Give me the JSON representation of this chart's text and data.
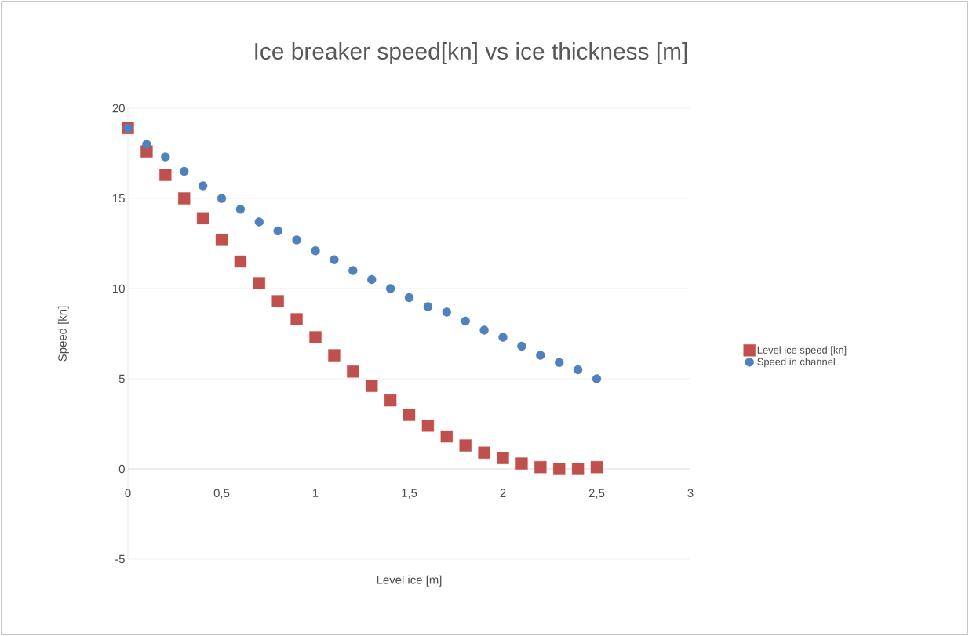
{
  "chart_data": {
    "type": "scatter",
    "title": "Ice breaker speed[kn] vs ice thickness [m]",
    "xlabel": "Level  ice [m]",
    "ylabel": "Speed  [kn]",
    "x": [
      0,
      0.1,
      0.2,
      0.3,
      0.4,
      0.5,
      0.6,
      0.7,
      0.8,
      0.9,
      1.0,
      1.1,
      1.2,
      1.3,
      1.4,
      1.5,
      1.6,
      1.7,
      1.8,
      1.9,
      2.0,
      2.1,
      2.2,
      2.3,
      2.4,
      2.5
    ],
    "series": [
      {
        "name": "Level ice speed [kn]",
        "color": "#c0504d",
        "marker": "square",
        "values": [
          18.9,
          17.6,
          16.3,
          15.0,
          13.9,
          12.7,
          11.5,
          10.3,
          9.3,
          8.3,
          7.3,
          6.3,
          5.4,
          4.6,
          3.8,
          3.0,
          2.4,
          1.8,
          1.3,
          0.9,
          0.6,
          0.3,
          0.1,
          0,
          0,
          0.1
        ]
      },
      {
        "name": "Speed in channel",
        "color": "#4f81bd",
        "marker": "circle",
        "values": [
          18.9,
          18.0,
          17.3,
          16.5,
          15.7,
          15.0,
          14.4,
          13.7,
          13.2,
          12.7,
          12.1,
          11.6,
          11.0,
          10.5,
          10.0,
          9.5,
          9.0,
          8.7,
          8.2,
          7.7,
          7.3,
          6.8,
          6.3,
          5.9,
          5.5,
          5.0
        ]
      }
    ],
    "xlim": [
      0,
      3
    ],
    "ylim": [
      -5,
      20
    ],
    "xticks": [
      0,
      {
        "value": 0.5,
        "label": "0,5"
      },
      1,
      {
        "value": 1.5,
        "label": "1,5"
      },
      2,
      {
        "value": 2.5,
        "label": "2,5"
      },
      3
    ],
    "yticks": [
      -5,
      0,
      5,
      10,
      15,
      20
    ],
    "grid": "y",
    "legend": "right"
  }
}
